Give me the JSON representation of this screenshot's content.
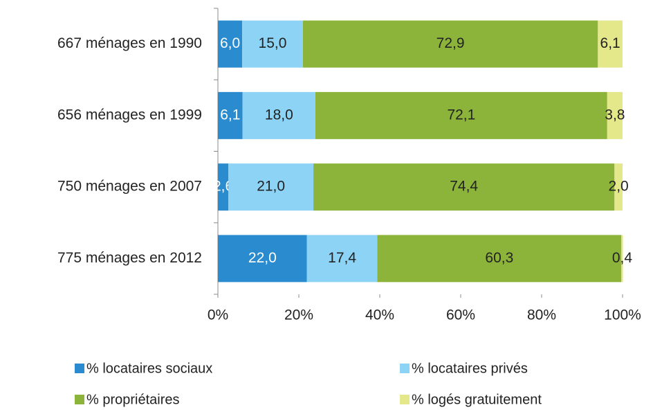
{
  "chart_data": {
    "type": "stacked_bar_horizontal",
    "categories": [
      "667 ménages en 1990",
      "656 ménages en 1999",
      "750 ménages en 2007",
      "775 ménages en 2012"
    ],
    "series": [
      {
        "name": "% locataires sociaux",
        "color": "#2a8ccf",
        "values": [
          6.0,
          6.1,
          2.6,
          22.0
        ],
        "value_labels": [
          "6,0",
          "6,1",
          "2,6",
          "22,0"
        ]
      },
      {
        "name": "% locataires privés",
        "color": "#8dd3f5",
        "values": [
          15.0,
          18.0,
          21.0,
          17.4
        ],
        "value_labels": [
          "15,0",
          "18,0",
          "21,0",
          "17,4"
        ]
      },
      {
        "name": "% propriétaires",
        "color": "#8cb43a",
        "values": [
          72.9,
          72.1,
          74.4,
          60.3
        ],
        "value_labels": [
          "72,9",
          "72,1",
          "74,4",
          "60,3"
        ]
      },
      {
        "name": "% logés gratuitement",
        "color": "#e4e88a",
        "values": [
          6.1,
          3.8,
          2.0,
          0.4
        ],
        "value_labels": [
          "6,1",
          "3,8",
          "2,0",
          "0,4"
        ]
      }
    ],
    "xlim": [
      0,
      100
    ],
    "xticks": [
      {
        "value": 0,
        "label": "0%"
      },
      {
        "value": 20,
        "label": "20%"
      },
      {
        "value": 40,
        "label": "40%"
      },
      {
        "value": 60,
        "label": "60%"
      },
      {
        "value": 80,
        "label": "80%"
      },
      {
        "value": 100,
        "label": "100%"
      }
    ]
  }
}
